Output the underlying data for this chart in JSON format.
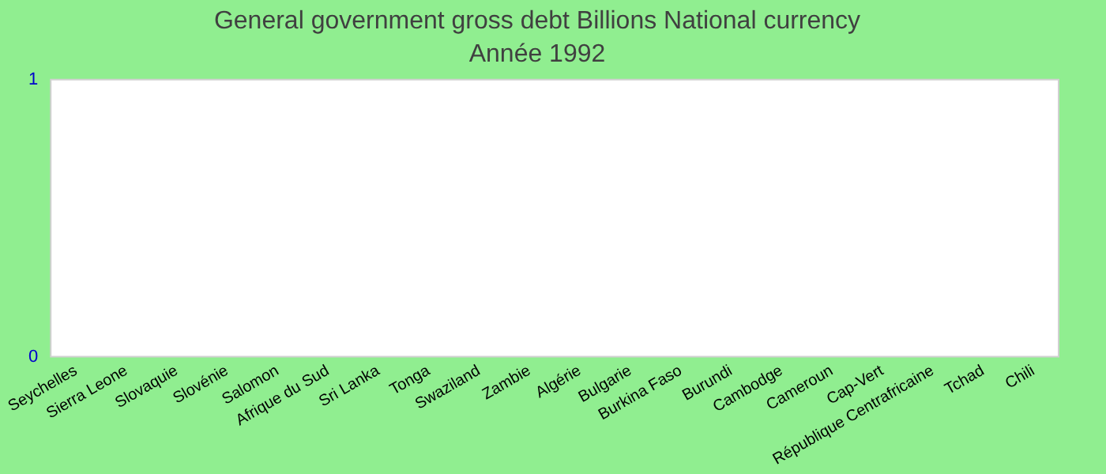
{
  "chart_data": {
    "type": "bar",
    "title": "General government gross debt Billions National currency",
    "subtitle": "Année 1992",
    "categories": [
      "Seychelles",
      "Sierra Leone",
      "Slovaquie",
      "Slovénie",
      "Salomon",
      "Afrique du Sud",
      "Sri Lanka",
      "Tonga",
      "Swaziland",
      "Zambie",
      "Algérie",
      "Bulgarie",
      "Burkina Faso",
      "Burundi",
      "Cambodge",
      "Cameroun",
      "Cap-Vert",
      "République Centrafricaine",
      "Tchad",
      "Chili"
    ],
    "values": [
      null,
      null,
      null,
      null,
      null,
      null,
      null,
      null,
      null,
      null,
      null,
      null,
      null,
      null,
      null,
      null,
      null,
      null,
      null,
      null
    ],
    "ylim": [
      0,
      1
    ],
    "yticks": [
      0,
      1
    ],
    "grid": false,
    "legend": false
  }
}
